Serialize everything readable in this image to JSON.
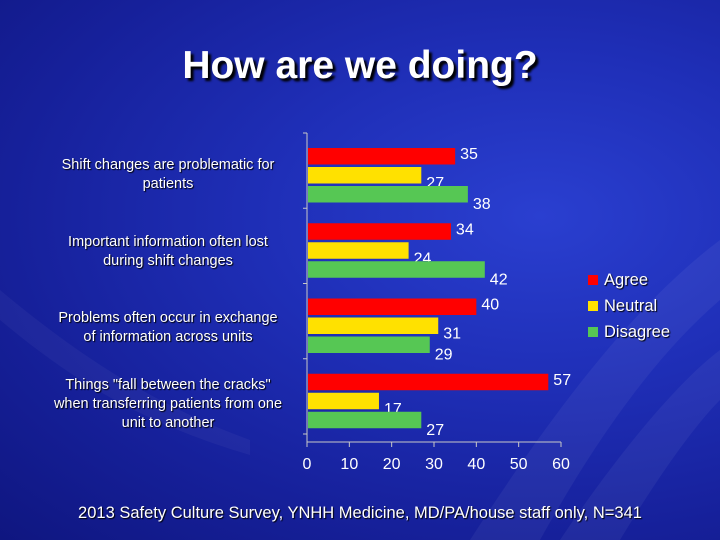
{
  "title": "How are we doing?",
  "footnote": "2013 Safety Culture Survey, YNHH Medicine, MD/PA/house staff only, N=341",
  "colors": {
    "agree": "#ff0000",
    "neutral": "#ffe100",
    "disagree": "#56c754",
    "axis": "#c8c8c8",
    "text": "#ffffff"
  },
  "chart_data": {
    "type": "bar",
    "orientation": "horizontal",
    "categories": [
      "Shift changes are problematic for patients",
      "Important information often lost during shift changes",
      "Problems often occur in exchange of information across units",
      "Things \"fall between the cracks\" when transferring patients from one unit to another"
    ],
    "category_lines": [
      [
        "Shift changes are problematic for",
        "patients"
      ],
      [
        "Important information often lost",
        "during shift changes"
      ],
      [
        "Problems often occur in exchange",
        "of information across units"
      ],
      [
        "Things \"fall between the cracks\"",
        "when transferring patients from one",
        "unit to another"
      ]
    ],
    "series": [
      {
        "name": "Agree",
        "values": [
          35,
          34,
          40,
          57
        ]
      },
      {
        "name": "Neutral",
        "values": [
          27,
          24,
          31,
          17
        ]
      },
      {
        "name": "Disagree",
        "values": [
          38,
          42,
          29,
          27
        ]
      }
    ],
    "xlim": [
      0,
      60
    ],
    "xticks": [
      0,
      10,
      20,
      30,
      40,
      50,
      60
    ],
    "legend": "right",
    "grid": false,
    "data_labels": true
  }
}
